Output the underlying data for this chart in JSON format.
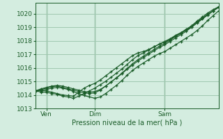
{
  "xlabel": "Pression niveau de la mer( hPa )",
  "bg_color": "#d4ede0",
  "grid_color": "#a0c8b0",
  "line_color": "#1a5c28",
  "vline_color": "#3a7a4a",
  "xlim": [
    0,
    68
  ],
  "ylim": [
    1013.0,
    1020.8
  ],
  "yticks": [
    1013,
    1014,
    1015,
    1016,
    1017,
    1018,
    1019,
    1020
  ],
  "xtick_labels": [
    "Ven",
    "Dim",
    "Sam"
  ],
  "xtick_positions": [
    4,
    22,
    48
  ],
  "vline_positions": [
    4,
    22,
    48
  ],
  "series": [
    {
      "x": [
        0,
        2,
        4,
        6,
        8,
        10,
        12,
        14,
        16,
        18,
        20,
        22,
        24,
        26,
        28,
        30,
        32,
        34,
        36,
        38,
        40,
        42,
        44,
        46,
        48,
        50,
        52,
        54,
        56,
        58,
        60,
        62,
        64,
        66,
        68
      ],
      "y": [
        1014.3,
        1014.3,
        1014.3,
        1014.2,
        1014.1,
        1014.0,
        1013.95,
        1013.9,
        1014.2,
        1014.5,
        1014.7,
        1014.85,
        1015.1,
        1015.4,
        1015.7,
        1016.0,
        1016.3,
        1016.6,
        1016.9,
        1017.1,
        1017.2,
        1017.35,
        1017.55,
        1017.75,
        1017.9,
        1018.1,
        1018.35,
        1018.55,
        1018.8,
        1019.0,
        1019.3,
        1019.6,
        1019.9,
        1020.2,
        1020.5
      ]
    },
    {
      "x": [
        0,
        2,
        4,
        6,
        8,
        10,
        12,
        14,
        16,
        18,
        20,
        22,
        24,
        26,
        28,
        30,
        32,
        34,
        36,
        38,
        40,
        42,
        44,
        46,
        48,
        50,
        52,
        54,
        56,
        58,
        60,
        62,
        64,
        66,
        68
      ],
      "y": [
        1014.3,
        1014.2,
        1014.2,
        1014.1,
        1014.05,
        1013.9,
        1013.85,
        1013.75,
        1013.9,
        1014.1,
        1014.3,
        1014.5,
        1014.75,
        1015.0,
        1015.3,
        1015.6,
        1015.9,
        1016.25,
        1016.6,
        1016.9,
        1017.1,
        1017.3,
        1017.55,
        1017.75,
        1017.95,
        1018.15,
        1018.4,
        1018.6,
        1018.85,
        1019.1,
        1019.4,
        1019.65,
        1019.95,
        1020.2,
        1020.5
      ]
    },
    {
      "x": [
        0,
        2,
        4,
        6,
        8,
        10,
        12,
        14,
        16,
        18,
        20,
        22,
        24,
        26,
        28,
        30,
        32,
        34,
        36,
        38,
        40,
        42,
        44,
        46,
        48,
        50,
        52,
        54,
        56,
        58,
        60,
        62,
        64,
        66,
        68
      ],
      "y": [
        1014.3,
        1014.35,
        1014.4,
        1014.5,
        1014.55,
        1014.5,
        1014.4,
        1014.25,
        1014.1,
        1013.95,
        1013.85,
        1013.75,
        1013.85,
        1014.1,
        1014.4,
        1014.7,
        1015.05,
        1015.45,
        1015.8,
        1016.1,
        1016.35,
        1016.6,
        1016.85,
        1017.05,
        1017.2,
        1017.45,
        1017.7,
        1017.95,
        1018.2,
        1018.45,
        1018.75,
        1019.1,
        1019.5,
        1019.85,
        1020.2
      ]
    },
    {
      "x": [
        0,
        2,
        4,
        6,
        8,
        10,
        12,
        14,
        16,
        18,
        20,
        22,
        24,
        26,
        28,
        30,
        32,
        34,
        36,
        38,
        40,
        42,
        44,
        46,
        48,
        50,
        52,
        54,
        56,
        58,
        60,
        62,
        64,
        66,
        68
      ],
      "y": [
        1014.3,
        1014.4,
        1014.5,
        1014.6,
        1014.65,
        1014.55,
        1014.45,
        1014.35,
        1014.25,
        1014.15,
        1014.1,
        1014.15,
        1014.35,
        1014.65,
        1014.95,
        1015.25,
        1015.6,
        1015.95,
        1016.3,
        1016.6,
        1016.85,
        1017.1,
        1017.35,
        1017.6,
        1017.8,
        1018.05,
        1018.3,
        1018.55,
        1018.8,
        1019.1,
        1019.45,
        1019.75,
        1020.05,
        1020.3,
        1020.5
      ]
    },
    {
      "x": [
        0,
        2,
        4,
        6,
        8,
        10,
        12,
        14,
        16,
        18,
        20,
        22,
        24,
        26,
        28,
        30,
        32,
        34,
        36,
        38,
        40,
        42,
        44,
        46,
        48,
        50,
        52,
        54,
        56,
        58,
        60,
        62,
        64,
        66,
        68
      ],
      "y": [
        1014.3,
        1014.45,
        1014.55,
        1014.65,
        1014.7,
        1014.65,
        1014.55,
        1014.45,
        1014.35,
        1014.25,
        1014.2,
        1014.25,
        1014.4,
        1014.65,
        1014.95,
        1015.25,
        1015.55,
        1015.9,
        1016.2,
        1016.5,
        1016.75,
        1017.0,
        1017.25,
        1017.5,
        1017.7,
        1017.95,
        1018.2,
        1018.45,
        1018.7,
        1019.0,
        1019.35,
        1019.65,
        1019.95,
        1020.2,
        1020.45
      ]
    }
  ]
}
